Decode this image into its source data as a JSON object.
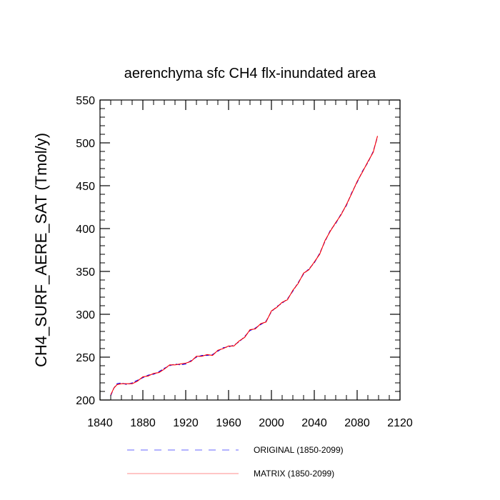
{
  "chart_data": {
    "type": "line",
    "title": "aerenchyma sfc CH4 flx-inundated area",
    "xlabel": "",
    "ylabel": "CH4_SURF_AERE_SAT  (Tmol/y)",
    "xlim": [
      1840,
      2120
    ],
    "ylim": [
      200,
      550
    ],
    "x_ticks": [
      1840,
      1880,
      1920,
      1960,
      2000,
      2040,
      2080,
      2120
    ],
    "y_ticks": [
      200,
      250,
      300,
      350,
      400,
      450,
      500,
      550
    ],
    "x_tick_labels": [
      "1840",
      "1880",
      "1920",
      "1960",
      "2000",
      "2040",
      "2080",
      "2120"
    ],
    "y_tick_labels": [
      "200",
      "250",
      "300",
      "350",
      "400",
      "450",
      "500",
      "550"
    ],
    "grid": false,
    "legend_position": "bottom",
    "series": [
      {
        "name": "ORIGINAL (1850-2099)",
        "color": "#0000ff",
        "style": "dashed",
        "x": [
          1850,
          1853,
          1856,
          1860,
          1865,
          1870,
          1875,
          1880,
          1885,
          1890,
          1895,
          1900,
          1905,
          1910,
          1915,
          1920,
          1925,
          1930,
          1935,
          1940,
          1945,
          1950,
          1955,
          1960,
          1965,
          1970,
          1975,
          1980,
          1985,
          1990,
          1995,
          2000,
          2005,
          2010,
          2015,
          2020,
          2025,
          2030,
          2035,
          2040,
          2045,
          2050,
          2055,
          2060,
          2065,
          2070,
          2075,
          2080,
          2085,
          2090,
          2095,
          2099
        ],
        "values": [
          205,
          214,
          219,
          220,
          218,
          220,
          223,
          226,
          229,
          230,
          233,
          237,
          240,
          242,
          241,
          242,
          246,
          250,
          252,
          252,
          253,
          257,
          261,
          262,
          264,
          268,
          274,
          281,
          284,
          288,
          292,
          303,
          309,
          313,
          318,
          327,
          337,
          347,
          353,
          360,
          371,
          385,
          398,
          406,
          417,
          427,
          442,
          454,
          467,
          477,
          490,
          507
        ]
      },
      {
        "name": "MATRIX (1850-2099)",
        "color": "#ff0000",
        "style": "solid",
        "x": [
          1850,
          1853,
          1856,
          1860,
          1865,
          1870,
          1875,
          1880,
          1885,
          1890,
          1895,
          1900,
          1905,
          1910,
          1915,
          1920,
          1925,
          1930,
          1935,
          1940,
          1945,
          1950,
          1955,
          1960,
          1965,
          1970,
          1975,
          1980,
          1985,
          1990,
          1995,
          2000,
          2005,
          2010,
          2015,
          2020,
          2025,
          2030,
          2035,
          2040,
          2045,
          2050,
          2055,
          2060,
          2065,
          2070,
          2075,
          2080,
          2085,
          2090,
          2095,
          2099
        ],
        "values": [
          206,
          214,
          218,
          219,
          219,
          219,
          222,
          227,
          228,
          231,
          232,
          236,
          241,
          241,
          242,
          243,
          245,
          251,
          251,
          253,
          252,
          258,
          260,
          263,
          263,
          269,
          273,
          282,
          283,
          289,
          291,
          304,
          308,
          314,
          317,
          328,
          336,
          348,
          352,
          361,
          370,
          386,
          397,
          407,
          416,
          428,
          441,
          455,
          466,
          478,
          489,
          508
        ]
      }
    ]
  }
}
